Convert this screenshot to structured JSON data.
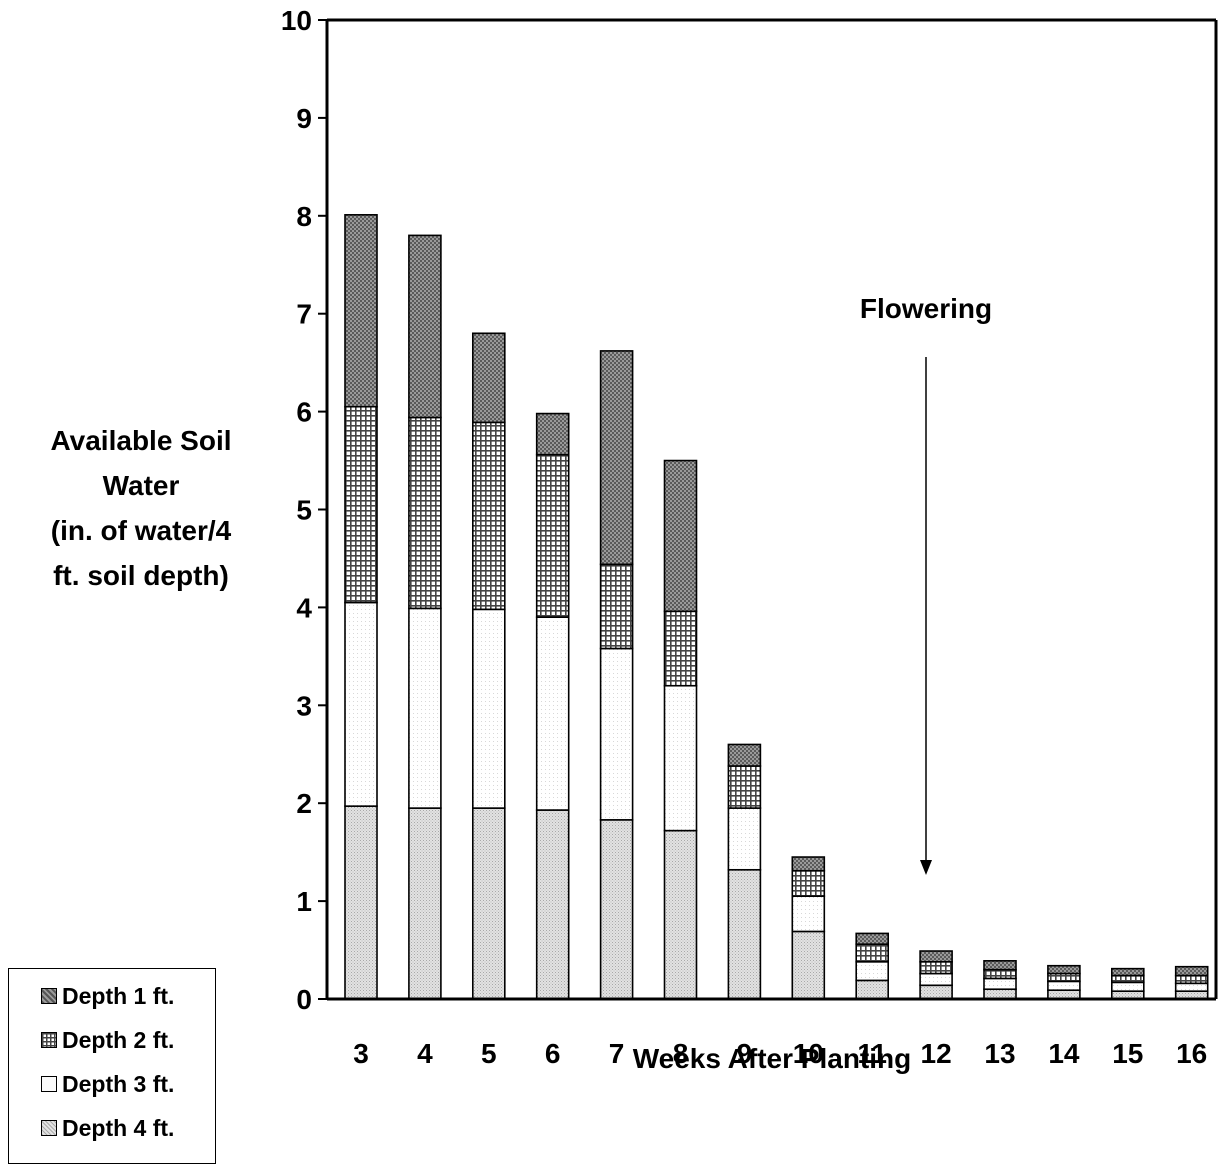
{
  "chart_data": {
    "type": "bar",
    "stacked": true,
    "categories": [
      "3",
      "4",
      "5",
      "6",
      "7",
      "8",
      "9",
      "10",
      "11",
      "12",
      "13",
      "14",
      "15",
      "16"
    ],
    "series": [
      {
        "name": "Depth 4 ft.",
        "values": [
          1.97,
          1.95,
          1.95,
          1.93,
          1.83,
          1.72,
          1.32,
          0.69,
          0.19,
          0.14,
          0.1,
          0.09,
          0.08,
          0.08
        ],
        "pattern": "dense-dots"
      },
      {
        "name": "Depth 3 ft.",
        "values": [
          2.08,
          2.04,
          2.03,
          1.97,
          1.75,
          1.48,
          0.63,
          0.36,
          0.19,
          0.12,
          0.11,
          0.09,
          0.09,
          0.08
        ],
        "pattern": "light-dots"
      },
      {
        "name": "Depth 2 ft.",
        "values": [
          2.0,
          1.95,
          1.91,
          1.66,
          0.86,
          0.76,
          0.43,
          0.26,
          0.18,
          0.12,
          0.09,
          0.08,
          0.07,
          0.08
        ],
        "pattern": "grid"
      },
      {
        "name": "Depth 1 ft.",
        "values": [
          1.96,
          1.86,
          0.91,
          0.42,
          2.18,
          1.54,
          0.22,
          0.14,
          0.11,
          0.11,
          0.09,
          0.08,
          0.07,
          0.09
        ],
        "pattern": "dark-dots"
      }
    ],
    "ylim": [
      0,
      10
    ],
    "yticks": [
      "0",
      "1",
      "2",
      "3",
      "4",
      "5",
      "6",
      "7",
      "8",
      "9",
      "10"
    ],
    "ylabel": [
      "Available Soil",
      "Water",
      "(in. of water/4",
      "ft. soil depth)"
    ],
    "xlabel": "Weeks After Planting",
    "annotation": {
      "text": "Flowering",
      "category": "12"
    },
    "legend_position": "bottom-left",
    "grid": false
  },
  "legend": [
    {
      "label": "Depth 1 ft.",
      "pattern": "dark-dots"
    },
    {
      "label": "Depth 2 ft.",
      "pattern": "grid"
    },
    {
      "label": "Depth 3 ft.",
      "pattern": "light-dots"
    },
    {
      "label": "Depth 4 ft.",
      "pattern": "dense-dots"
    }
  ]
}
